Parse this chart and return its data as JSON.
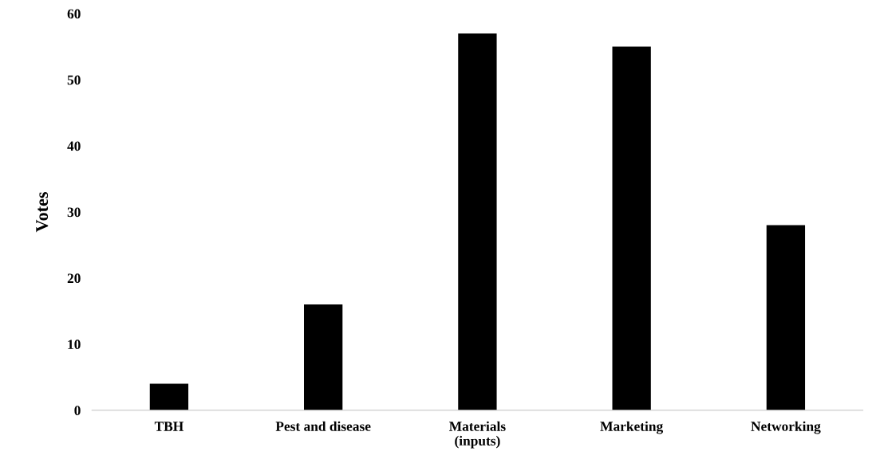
{
  "chart_data": {
    "type": "bar",
    "ylabel": "Votes",
    "categories": [
      "TBH",
      "Pest and disease",
      "Materials\n(inputs)",
      "Marketing",
      "Networking"
    ],
    "values": [
      4,
      16,
      57,
      55,
      28
    ],
    "color": "#000000",
    "ylim": [
      0,
      60
    ],
    "yticks": [
      0,
      10,
      20,
      30,
      40,
      50,
      60
    ],
    "grid": false,
    "legend": false
  }
}
